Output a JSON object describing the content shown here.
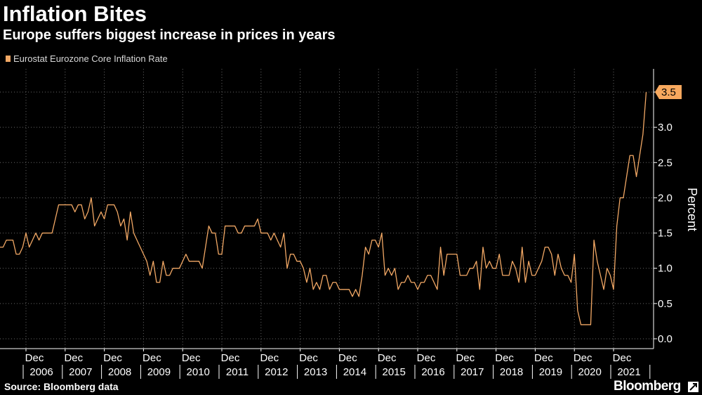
{
  "header": {
    "title": "Inflation Bites",
    "subtitle": "Europe suffers biggest increase in prices in years"
  },
  "legend": {
    "label": "Eurostat Eurozone Core Inflation Rate"
  },
  "footer": {
    "source": "Source: Bloomberg data",
    "brand": "Bloomberg"
  },
  "colors": {
    "series": "#f2a865",
    "callout": "#f7a85e",
    "grid": "#666666",
    "background": "#000000"
  },
  "chart_data": {
    "type": "line",
    "title": "Inflation Bites",
    "subtitle": "Europe suffers biggest increase in prices in years",
    "xlabel": "",
    "ylabel": "Percent",
    "ylim": [
      0,
      3.5
    ],
    "yticks": [
      "0.0",
      "0.5",
      "1.0",
      "1.5",
      "2.0",
      "2.5",
      "3.0",
      "3.5"
    ],
    "grid": "on",
    "legend_position": "top-left",
    "x_start": "2006-01",
    "x_end": "2021-12",
    "x_frequency": "monthly",
    "xticks_month_label": "Dec",
    "xticks_year_labels": [
      "2006",
      "2007",
      "2008",
      "2009",
      "2010",
      "2011",
      "2012",
      "2013",
      "2014",
      "2015",
      "2016",
      "2017",
      "2018",
      "2019",
      "2020",
      "2021"
    ],
    "last_value_label": "3.5",
    "series": [
      {
        "name": "Eurostat Eurozone Core Inflation Rate",
        "values": [
          1.6,
          1.4,
          1.3,
          1.3,
          1.3,
          1.4,
          1.4,
          1.4,
          1.2,
          1.2,
          1.3,
          1.5,
          1.3,
          1.4,
          1.5,
          1.4,
          1.5,
          1.5,
          1.5,
          1.5,
          1.7,
          1.9,
          1.9,
          1.9,
          1.9,
          1.9,
          1.8,
          1.9,
          1.9,
          1.7,
          1.8,
          2.0,
          1.6,
          1.7,
          1.8,
          1.7,
          1.9,
          1.9,
          1.9,
          1.8,
          1.6,
          1.7,
          1.4,
          1.8,
          1.5,
          1.4,
          1.3,
          1.2,
          1.1,
          0.9,
          1.1,
          0.8,
          0.8,
          1.1,
          0.9,
          0.9,
          1.0,
          1.0,
          1.0,
          1.1,
          1.2,
          1.1,
          1.1,
          1.1,
          1.1,
          1.0,
          1.3,
          1.6,
          1.5,
          1.5,
          1.2,
          1.2,
          1.6,
          1.6,
          1.6,
          1.6,
          1.5,
          1.5,
          1.6,
          1.6,
          1.6,
          1.6,
          1.7,
          1.5,
          1.5,
          1.5,
          1.4,
          1.5,
          1.4,
          1.3,
          1.5,
          1.0,
          1.2,
          1.2,
          1.1,
          1.1,
          1.0,
          0.8,
          1.0,
          0.7,
          0.8,
          0.7,
          0.9,
          0.9,
          0.7,
          0.8,
          0.8,
          0.7,
          0.7,
          0.7,
          0.7,
          0.6,
          0.7,
          0.6,
          0.9,
          1.3,
          1.2,
          1.4,
          1.4,
          1.3,
          1.5,
          0.9,
          1.0,
          0.9,
          1.0,
          0.7,
          0.8,
          0.8,
          0.9,
          0.8,
          0.8,
          0.7,
          0.8,
          0.8,
          0.9,
          0.9,
          0.8,
          0.7,
          1.3,
          0.9,
          1.2,
          1.2,
          1.2,
          1.2,
          0.9,
          0.9,
          0.9,
          1.0,
          1.0,
          1.1,
          0.7,
          1.3,
          1.0,
          1.1,
          1.0,
          1.0,
          1.2,
          0.9,
          0.9,
          0.9,
          1.1,
          1.0,
          0.8,
          1.3,
          0.8,
          1.1,
          0.9,
          0.9,
          1.0,
          1.1,
          1.3,
          1.3,
          1.2,
          0.9,
          1.2,
          1.0,
          0.9,
          0.9,
          0.8,
          1.2,
          0.4,
          0.2,
          0.2,
          0.2,
          0.2,
          1.4,
          1.1,
          0.9,
          0.7,
          1.0,
          0.9,
          0.7,
          1.6,
          2.0,
          2.0,
          2.3,
          2.6,
          2.6,
          2.3,
          2.6,
          2.9,
          3.5
        ]
      }
    ]
  }
}
